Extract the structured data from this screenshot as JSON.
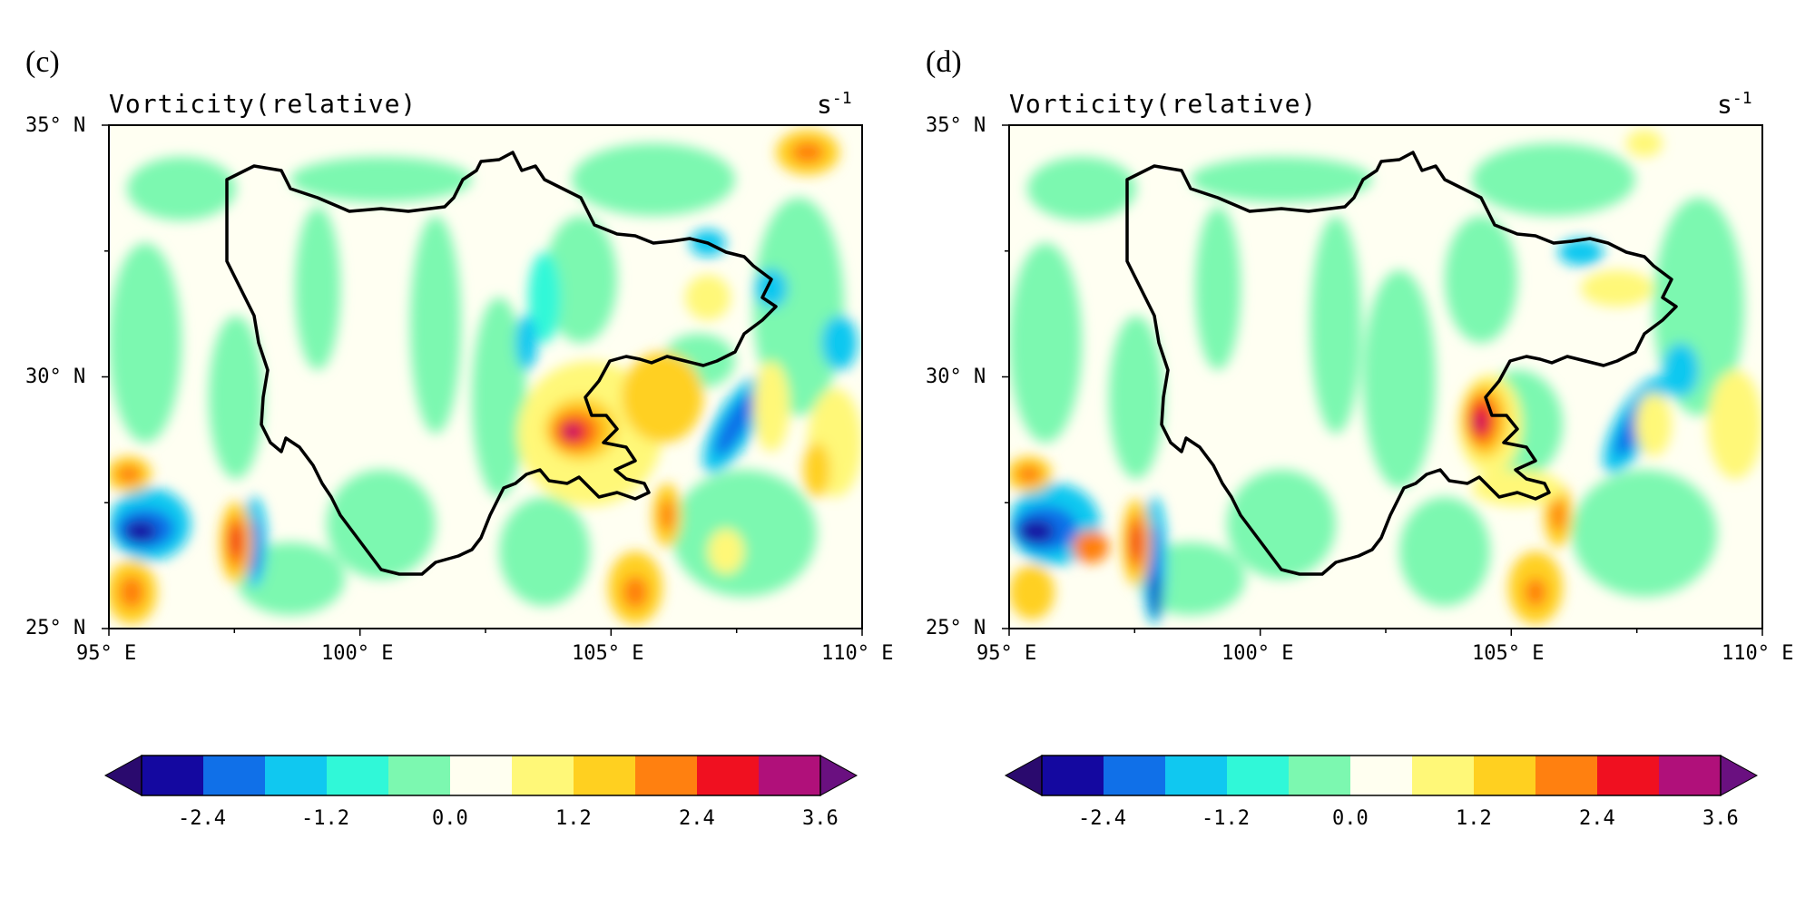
{
  "panels": [
    {
      "id": "c",
      "label": "(c)",
      "title": "Vorticity(relative)",
      "units_base": "s",
      "units_exp": "-1",
      "lat_ticks": [
        "35° N",
        "30° N",
        "25° N"
      ],
      "lon_ticks": [
        "95° E",
        "100° E",
        "105° E",
        "110° E"
      ],
      "colorbar_labels": [
        "-2.4",
        "-1.2",
        "0.0",
        "1.2",
        "2.4",
        "3.6"
      ]
    },
    {
      "id": "d",
      "label": "(d)",
      "title": "Vorticity(relative)",
      "units_base": "s",
      "units_exp": "-1",
      "lat_ticks": [
        "35° N",
        "30° N",
        "25° N"
      ],
      "lon_ticks": [
        "95° E",
        "100° E",
        "105° E",
        "110° E"
      ],
      "colorbar_labels": [
        "-2.4",
        "-1.2",
        "0.0",
        "1.2",
        "2.4",
        "3.6"
      ]
    }
  ],
  "colorbar_colors": [
    "#2a0a6e",
    "#1408a0",
    "#1070e8",
    "#10c8f0",
    "#30f8d8",
    "#7cf8b0",
    "#fffff0",
    "#fff878",
    "#ffd020",
    "#ff8010",
    "#f01020",
    "#b0107a",
    "#6a1080"
  ],
  "map_extent": {
    "lon": [
      95,
      110
    ],
    "lat": [
      25,
      35
    ]
  },
  "features": [
    {
      "lon": 104.3,
      "lat": 29.0,
      "value": 3.5,
      "panel": "both"
    },
    {
      "lon": 97.6,
      "lat": 26.7,
      "value": 3.0,
      "panel": "both"
    },
    {
      "lon": 95.5,
      "lat": 27.0,
      "value": -2.5,
      "panel": "both"
    },
    {
      "lon": 95.4,
      "lat": 28.1,
      "value": 2.3,
      "panel": "both"
    },
    {
      "lon": 106.9,
      "lat": 29.0,
      "value": -2.2,
      "panel": "both"
    },
    {
      "lon": 107.5,
      "lat": 30.0,
      "value": -1.8,
      "panel": "both"
    },
    {
      "lon": 105.5,
      "lat": 25.6,
      "value": 2.2,
      "panel": "both"
    },
    {
      "lon": 106.0,
      "lat": 27.2,
      "value": 2.4,
      "panel": "both"
    },
    {
      "lon": 105.8,
      "lat": 29.8,
      "value": 1.6,
      "panel": "c"
    },
    {
      "lon": 108.8,
      "lat": 34.5,
      "value": 1.8,
      "panel": "c"
    },
    {
      "lon": 98.0,
      "lat": 26.5,
      "value": -2.0,
      "panel": "both"
    }
  ]
}
